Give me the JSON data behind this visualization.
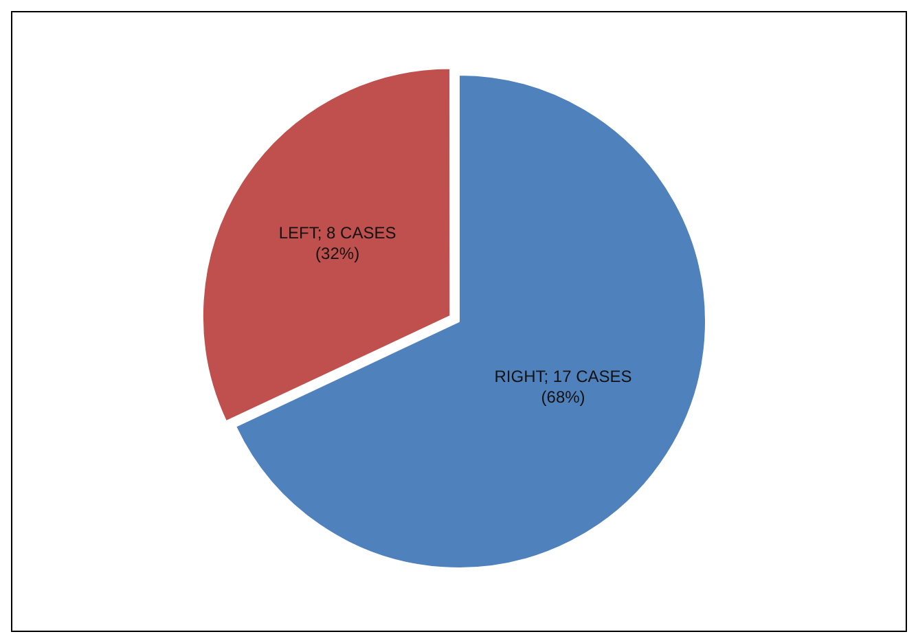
{
  "chart_data": {
    "type": "pie",
    "categories": [
      "LEFT",
      "RIGHT"
    ],
    "values": [
      8,
      17
    ],
    "colors": [
      "#c0504d",
      "#4f81bd"
    ],
    "value_labels": [
      "8 CASES\n(32%)",
      "17 CASES\n(68%)"
    ],
    "legend": false
  }
}
